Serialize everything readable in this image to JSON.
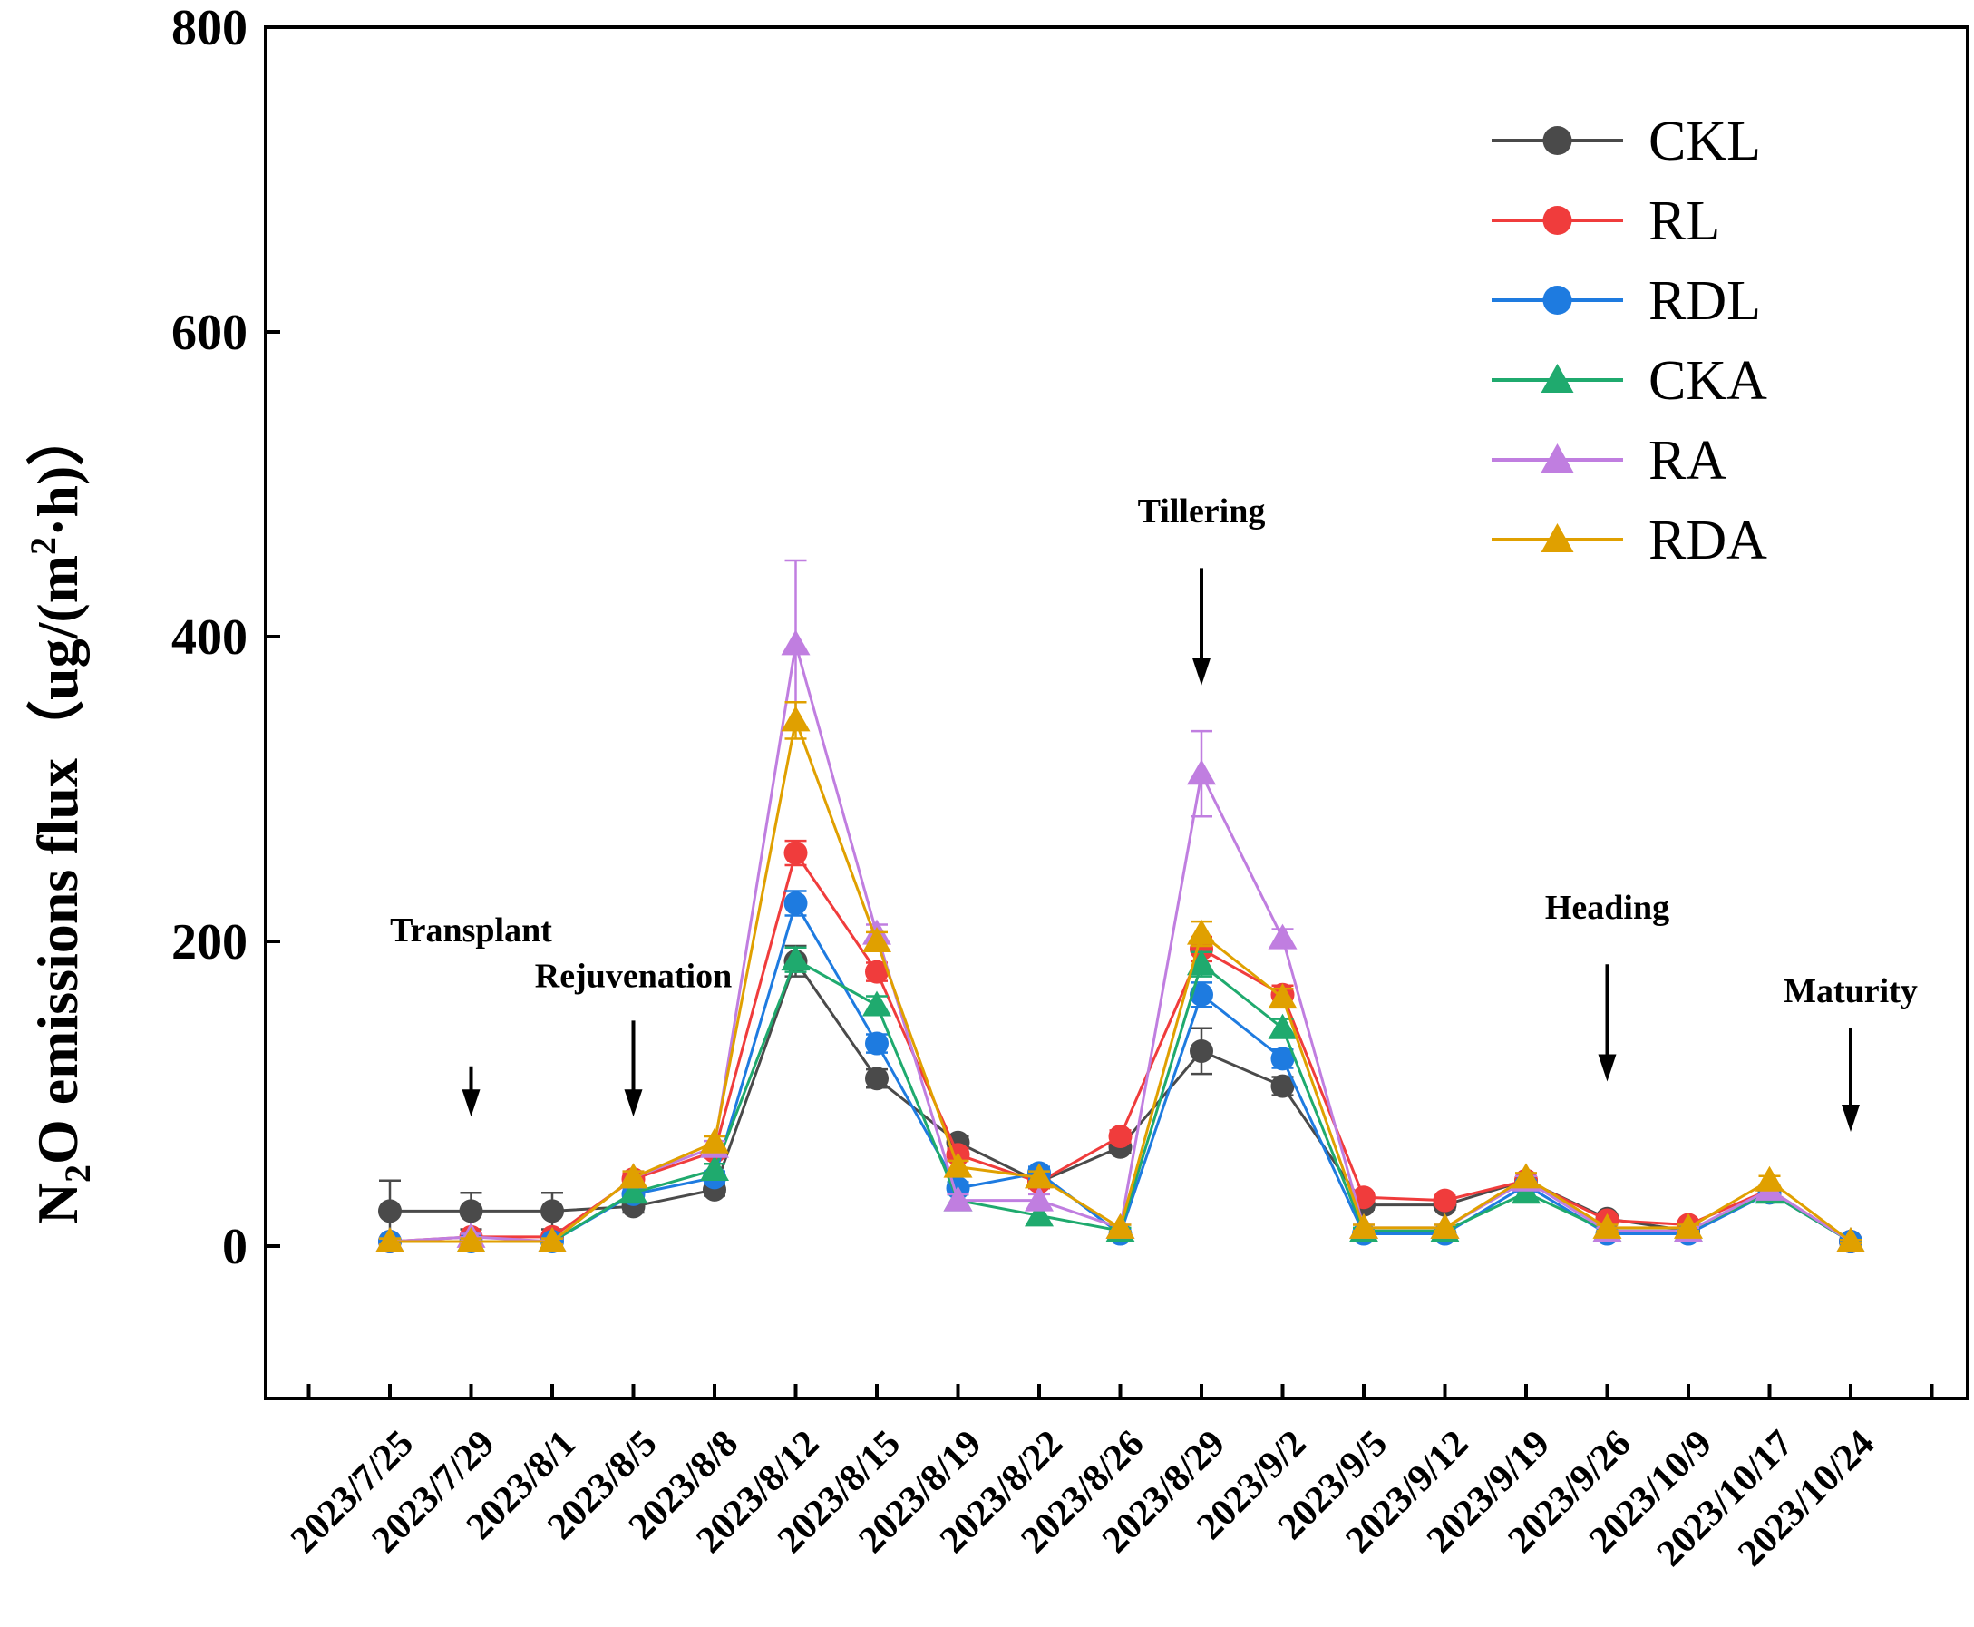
{
  "chart_data": {
    "type": "line",
    "title": "",
    "xlabel": "",
    "ylabel": {
      "prefix": "N",
      "sub": "2",
      "mid": "O emissions flux（ug/(m",
      "sup": "2",
      "suffix": "·h)）"
    },
    "ylim": [
      -100,
      800
    ],
    "yticks": [
      0,
      200,
      400,
      600,
      800
    ],
    "legend_position": "top-right",
    "categories": [
      "2023/7/25",
      "2023/7/29",
      "2023/8/1",
      "2023/8/5",
      "2023/8/8",
      "2023/8/12",
      "2023/8/15",
      "2023/8/19",
      "2023/8/22",
      "2023/8/26",
      "2023/8/29",
      "2023/9/2",
      "2023/9/5",
      "2023/9/12",
      "2023/9/19",
      "2023/9/26",
      "2023/10/9",
      "2023/10/17",
      "2023/10/24"
    ],
    "series": [
      {
        "name": "CKL",
        "color": "#4a4a4a",
        "marker": "circle",
        "values": [
          23,
          23,
          23,
          26,
          37,
          187,
          110,
          68,
          42,
          65,
          128,
          105,
          27,
          27,
          43,
          18,
          10,
          35,
          3
        ],
        "errors": [
          20,
          12,
          12,
          4,
          4,
          10,
          6,
          4,
          4,
          4,
          15,
          6,
          3,
          3,
          3,
          2,
          2,
          3,
          1
        ]
      },
      {
        "name": "RL",
        "color": "#f03c3c",
        "marker": "circle",
        "values": [
          3,
          6,
          6,
          44,
          62,
          258,
          180,
          60,
          42,
          72,
          195,
          165,
          32,
          30,
          43,
          17,
          14,
          37,
          3
        ],
        "errors": [
          2,
          2,
          2,
          4,
          4,
          8,
          6,
          4,
          4,
          4,
          8,
          6,
          3,
          3,
          3,
          2,
          2,
          3,
          1
        ]
      },
      {
        "name": "RDL",
        "color": "#1e7be0",
        "marker": "circle",
        "values": [
          3,
          3,
          3,
          34,
          45,
          225,
          133,
          38,
          48,
          8,
          165,
          123,
          8,
          8,
          40,
          8,
          8,
          35,
          3
        ],
        "errors": [
          2,
          2,
          2,
          4,
          4,
          8,
          6,
          4,
          4,
          2,
          8,
          6,
          2,
          2,
          3,
          2,
          2,
          3,
          1
        ]
      },
      {
        "name": "CKA",
        "color": "#1faa6e",
        "marker": "triangle",
        "values": [
          3,
          3,
          3,
          35,
          50,
          188,
          158,
          30,
          20,
          10,
          185,
          143,
          10,
          10,
          35,
          10,
          10,
          35,
          3
        ],
        "errors": [
          2,
          2,
          2,
          4,
          4,
          8,
          6,
          4,
          4,
          2,
          8,
          6,
          2,
          2,
          3,
          2,
          2,
          3,
          1
        ]
      },
      {
        "name": "RA",
        "color": "#c07ee0",
        "marker": "triangle",
        "values": [
          3,
          6,
          3,
          45,
          65,
          395,
          205,
          30,
          30,
          12,
          310,
          202,
          12,
          12,
          43,
          10,
          10,
          37,
          3
        ],
        "errors": [
          2,
          2,
          2,
          4,
          4,
          55,
          6,
          4,
          4,
          2,
          28,
          6,
          2,
          2,
          3,
          2,
          2,
          3,
          1
        ]
      },
      {
        "name": "RDA",
        "color": "#e0a000",
        "marker": "triangle",
        "values": [
          3,
          3,
          3,
          45,
          68,
          345,
          200,
          52,
          45,
          12,
          205,
          163,
          12,
          12,
          45,
          12,
          12,
          43,
          3
        ],
        "errors": [
          2,
          2,
          2,
          4,
          4,
          12,
          6,
          4,
          4,
          2,
          8,
          6,
          2,
          2,
          3,
          2,
          2,
          3,
          1
        ]
      }
    ],
    "annotations": [
      {
        "text": "Transplant",
        "category_index": 1,
        "label_level": 200,
        "arrow_from": 118,
        "arrow_to": 85
      },
      {
        "text": "Rejuvenation",
        "category_index": 3,
        "label_level": 170,
        "arrow_from": 148,
        "arrow_to": 85
      },
      {
        "text": "Tillering",
        "category_index": 10,
        "label_level": 475,
        "arrow_from": 445,
        "arrow_to": 368
      },
      {
        "text": "Heading",
        "category_index": 15,
        "label_level": 215,
        "arrow_from": 185,
        "arrow_to": 108
      },
      {
        "text": "Maturity",
        "category_index": 18,
        "label_level": 160,
        "arrow_from": 143,
        "arrow_to": 75
      }
    ]
  }
}
